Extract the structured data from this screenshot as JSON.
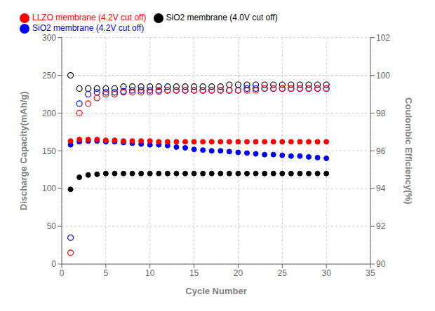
{
  "chart_data": {
    "type": "scatter",
    "xlabel": "Cycle Number",
    "ylabel": "Discharge Capacity(mAh/g)",
    "y2label": "Coulombic Efficiency(%)",
    "x": [
      1,
      2,
      3,
      4,
      5,
      6,
      7,
      8,
      9,
      10,
      11,
      12,
      13,
      14,
      15,
      16,
      17,
      18,
      19,
      20,
      21,
      22,
      23,
      24,
      25,
      26,
      27,
      28,
      29,
      30
    ],
    "series": [
      {
        "name": "SiO2 membrane (4.0V cut off)",
        "color": "black",
        "marker": "circle",
        "values": [
          99,
          115,
          118,
          119,
          120,
          120,
          120,
          120,
          120,
          120,
          120,
          120,
          120,
          120,
          120,
          120,
          120,
          120,
          120,
          120,
          120,
          120,
          120,
          120,
          120,
          120,
          120,
          120,
          120,
          120
        ]
      },
      {
        "name": "SiO2 membrane (4.2V cut off)",
        "color": "blue",
        "marker": "circle",
        "values": [
          158,
          162,
          163,
          163,
          162,
          162,
          161,
          160,
          159,
          158,
          158,
          157,
          155,
          154,
          152,
          151,
          150,
          150,
          149,
          148,
          147,
          146,
          145,
          145,
          144,
          143,
          143,
          142,
          141,
          140
        ]
      },
      {
        "name": "LLZO membrane (4.2V cut off)",
        "color": "red",
        "marker": "circle",
        "values": [
          163,
          165,
          165,
          165,
          164,
          164,
          163,
          163,
          163,
          163,
          162,
          162,
          162,
          162,
          162,
          162,
          162,
          162,
          162,
          162,
          162,
          162,
          162,
          162,
          162,
          162,
          162,
          162,
          162,
          162
        ]
      },
      {
        "color": "black",
        "marker": "circle_open",
        "axis": "y2",
        "values": [
          100.0,
          99.3,
          99.3,
          99.3,
          99.3,
          99.3,
          99.4,
          99.4,
          99.4,
          99.4,
          99.4,
          99.4,
          99.4,
          99.4,
          99.4,
          99.4,
          99.4,
          99.4,
          99.5,
          99.5,
          99.5,
          99.5,
          99.5,
          99.5,
          99.5,
          99.5,
          99.5,
          99.5,
          99.5,
          99.5
        ]
      },
      {
        "color": "blue",
        "marker": "circle_open",
        "axis": "y2",
        "values": [
          91.4,
          98.5,
          99.0,
          99.1,
          99.1,
          99.1,
          99.15,
          99.2,
          99.2,
          99.2,
          99.2,
          99.2,
          99.2,
          99.2,
          99.2,
          99.2,
          99.2,
          99.2,
          99.2,
          99.2,
          99.3,
          99.3,
          99.3,
          99.3,
          99.3,
          99.3,
          99.3,
          99.3,
          99.3,
          99.3
        ]
      },
      {
        "color": "red",
        "marker": "circle_open",
        "axis": "y2",
        "values": [
          90.6,
          98.0,
          98.5,
          98.8,
          99.0,
          99.0,
          99.1,
          99.1,
          99.1,
          99.1,
          99.15,
          99.2,
          99.2,
          99.2,
          99.2,
          99.2,
          99.2,
          99.2,
          99.2,
          99.2,
          99.2,
          99.2,
          99.3,
          99.3,
          99.3,
          99.3,
          99.3,
          99.3,
          99.3,
          99.3
        ]
      }
    ],
    "xlim": [
      0,
      35
    ],
    "xticks": [
      0,
      5,
      10,
      15,
      20,
      25,
      30,
      35
    ],
    "ylim": [
      0,
      300
    ],
    "yticks": [
      0,
      50,
      100,
      150,
      200,
      250,
      300
    ],
    "y2lim": [
      90,
      102
    ],
    "y2ticks": [
      90,
      92,
      94,
      96,
      98,
      100,
      102
    ],
    "grid": true,
    "legend": "upper left"
  }
}
